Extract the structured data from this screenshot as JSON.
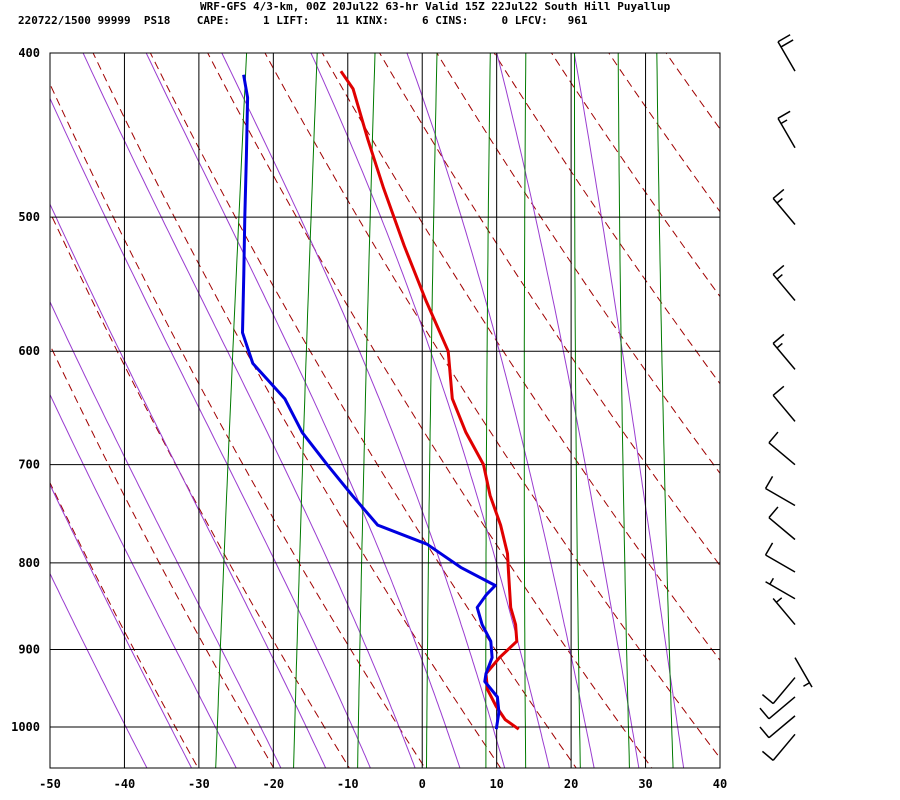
{
  "header": {
    "title": "WRF-GFS 4/3-km, 00Z 20Jul22 63-hr Valid 15Z 22Jul22 South Hill Puyallup",
    "info": "220722/1500 99999  PS18    CAPE:     1 LIFT:    11 KINX:     6 CINS:     0 LFCV:   961"
  },
  "colors": {
    "temperature": "#e00000",
    "dewpoint": "#0000e0",
    "dry_adiabat": "#a00000",
    "moist_adiabat": "#9a3dd0",
    "mixing_ratio": "#007a00",
    "grid": "#000000"
  },
  "chart_data": {
    "type": "line",
    "title": "",
    "xlabel": "",
    "ylabel": "",
    "x_ticks": [
      "-50",
      "-40",
      "-30",
      "-20",
      "-10",
      "0",
      "10",
      "20",
      "30",
      "40"
    ],
    "y_ticks": [
      "400",
      "500",
      "600",
      "700",
      "800",
      "900",
      "1000"
    ],
    "x_range": [
      -50,
      40
    ],
    "y_range": [
      400,
      1040
    ],
    "y_scale": "log-pressure (inverted)",
    "grid": true,
    "series": [
      {
        "key": "temperature",
        "points": [
          [
            1003,
            13
          ],
          [
            990,
            11
          ],
          [
            972,
            9.5
          ],
          [
            950,
            8
          ],
          [
            930,
            7.5
          ],
          [
            910,
            9
          ],
          [
            890,
            11
          ],
          [
            870,
            10.5
          ],
          [
            850,
            9.5
          ],
          [
            830,
            9
          ],
          [
            810,
            8.5
          ],
          [
            790,
            8
          ],
          [
            760,
            6.5
          ],
          [
            730,
            4.5
          ],
          [
            700,
            3
          ],
          [
            670,
            0
          ],
          [
            640,
            -2.5
          ],
          [
            600,
            -4
          ],
          [
            560,
            -8
          ],
          [
            520,
            -12
          ],
          [
            480,
            -16
          ],
          [
            450,
            -19
          ],
          [
            420,
            -22
          ],
          [
            410,
            -24
          ]
        ]
      },
      {
        "key": "dewpoint",
        "points": [
          [
            1003,
            10
          ],
          [
            980,
            10
          ],
          [
            960,
            9.5
          ],
          [
            940,
            7.5
          ],
          [
            930,
            7.5
          ],
          [
            910,
            8
          ],
          [
            890,
            7.5
          ],
          [
            870,
            6
          ],
          [
            850,
            5
          ],
          [
            835,
            6
          ],
          [
            825,
            7
          ],
          [
            805,
            2
          ],
          [
            780,
            -3
          ],
          [
            760,
            -10
          ],
          [
            730,
            -14
          ],
          [
            700,
            -18
          ],
          [
            670,
            -22
          ],
          [
            640,
            -25
          ],
          [
            610,
            -30
          ],
          [
            585,
            -32
          ],
          [
            540,
            -33
          ],
          [
            500,
            -34
          ],
          [
            460,
            -35
          ],
          [
            425,
            -36
          ],
          [
            412,
            -37
          ]
        ]
      }
    ],
    "wind_barbs": [
      {
        "p": 410,
        "speed": 20,
        "dir": 330
      },
      {
        "p": 455,
        "speed": 15,
        "dir": 330
      },
      {
        "p": 505,
        "speed": 15,
        "dir": 320
      },
      {
        "p": 560,
        "speed": 15,
        "dir": 320
      },
      {
        "p": 615,
        "speed": 15,
        "dir": 320
      },
      {
        "p": 660,
        "speed": 10,
        "dir": 320
      },
      {
        "p": 700,
        "speed": 10,
        "dir": 310
      },
      {
        "p": 740,
        "speed": 10,
        "dir": 300
      },
      {
        "p": 775,
        "speed": 10,
        "dir": 310
      },
      {
        "p": 810,
        "speed": 10,
        "dir": 300
      },
      {
        "p": 840,
        "speed": 5,
        "dir": 300
      },
      {
        "p": 870,
        "speed": 5,
        "dir": 320
      },
      {
        "p": 910,
        "speed": 5,
        "dir": 150
      },
      {
        "p": 935,
        "speed": 10,
        "dir": 220
      },
      {
        "p": 960,
        "speed": 10,
        "dir": 230
      },
      {
        "p": 985,
        "speed": 10,
        "dir": 230
      },
      {
        "p": 1010,
        "speed": 10,
        "dir": 220
      }
    ]
  }
}
